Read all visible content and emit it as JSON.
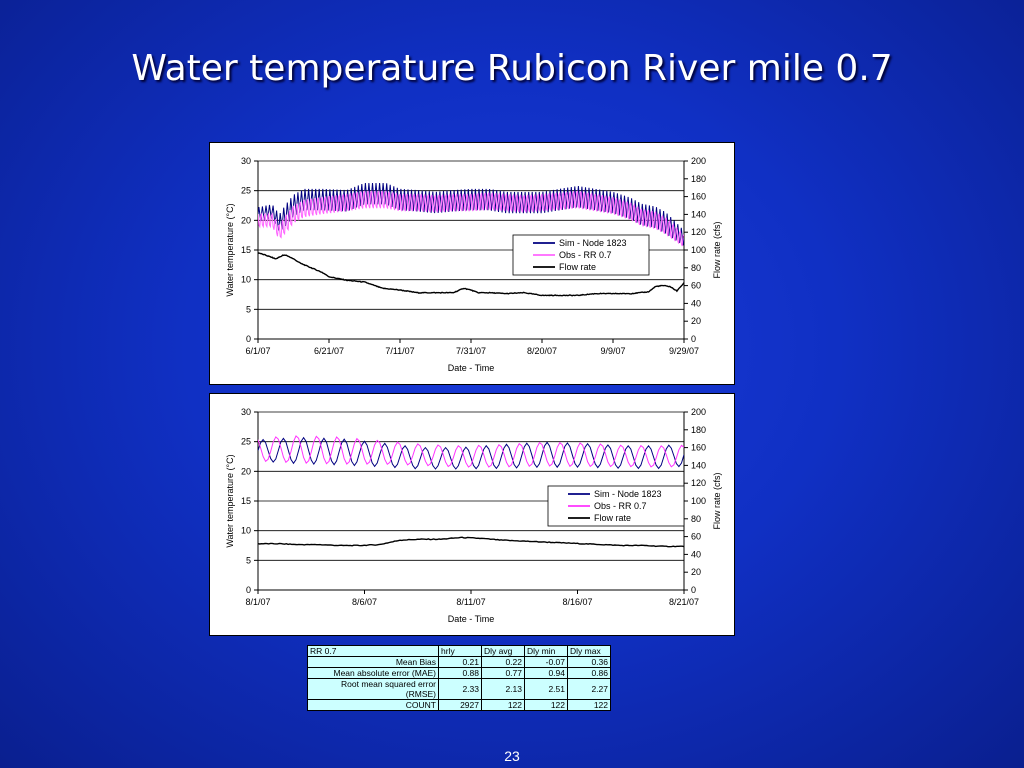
{
  "slide": {
    "title": "Water temperature Rubicon River mile 0.7",
    "page_number": "23"
  },
  "chart_data": [
    {
      "type": "line",
      "title": "",
      "xlabel": "Date - Time",
      "ylabel": "Water temperature (°C)",
      "y2label": "Flow rate (cfs)",
      "x_ticks": [
        "6/1/07",
        "6/21/07",
        "7/11/07",
        "7/31/07",
        "8/20/07",
        "9/9/07",
        "9/29/07"
      ],
      "x_range_days": [
        0,
        120
      ],
      "ylim": [
        0,
        30
      ],
      "y_ticks": [
        0,
        5,
        10,
        15,
        20,
        25,
        30
      ],
      "y2lim": [
        0,
        200
      ],
      "y2_ticks": [
        0,
        20,
        40,
        60,
        80,
        100,
        120,
        140,
        160,
        180,
        200
      ],
      "grid": "horizontal",
      "legend_position": "center-right",
      "series": [
        {
          "name": "Sim - Node 1823",
          "axis": "left",
          "color": "#000080",
          "style": "diurnal",
          "x": [
            0,
            4,
            6,
            8,
            10,
            13,
            18,
            25,
            30,
            36,
            40,
            45,
            50,
            55,
            60,
            65,
            70,
            75,
            80,
            85,
            90,
            95,
            100,
            105,
            108,
            112,
            115,
            118,
            120
          ],
          "y": [
            21,
            21.5,
            19.5,
            21,
            22.5,
            23.5,
            23.5,
            23.3,
            24.5,
            24.5,
            23.5,
            23.3,
            23,
            23.3,
            23.5,
            23.5,
            23,
            23,
            23,
            23.5,
            24,
            23.5,
            23,
            22,
            21,
            20.5,
            19.5,
            18,
            17
          ],
          "amplitude": [
            1.2,
            1.2,
            1.5,
            1.8,
            1.8,
            1.8,
            1.8,
            1.8,
            1.8,
            1.8,
            1.8,
            1.8,
            1.8,
            1.8,
            1.8,
            1.8,
            1.8,
            1.8,
            1.8,
            1.8,
            1.8,
            1.8,
            1.8,
            1.8,
            1.8,
            1.8,
            1.8,
            1.5,
            1.3
          ]
        },
        {
          "name": "Obs - RR 0.7",
          "axis": "left",
          "color": "#ff66ff",
          "style": "diurnal",
          "x": [
            0,
            4,
            6,
            8,
            10,
            13,
            18,
            25,
            30,
            36,
            40,
            45,
            50,
            55,
            60,
            65,
            70,
            75,
            80,
            85,
            90,
            95,
            100,
            105,
            108,
            112,
            115,
            118,
            120
          ],
          "y": [
            20,
            20,
            18,
            19.5,
            21,
            22,
            22.5,
            23,
            23.5,
            23.5,
            23,
            23,
            22.8,
            23,
            23,
            23.2,
            23,
            22.8,
            23,
            23.2,
            23.5,
            23,
            22.5,
            21.5,
            20.5,
            20,
            19,
            17.5,
            16.5
          ],
          "amplitude": [
            1.3,
            1.3,
            1.5,
            1.8,
            1.8,
            1.8,
            1.8,
            1.8,
            1.8,
            1.8,
            1.8,
            1.8,
            1.8,
            1.8,
            1.8,
            1.8,
            1.8,
            1.8,
            1.8,
            1.8,
            1.8,
            1.8,
            1.8,
            1.8,
            1.8,
            1.8,
            1.8,
            1.5,
            1.3
          ]
        },
        {
          "name": "Flow  rate",
          "axis": "right",
          "color": "#000000",
          "style": "line",
          "x": [
            0,
            3,
            5,
            7,
            8,
            10,
            12,
            15,
            18,
            20,
            25,
            30,
            35,
            40,
            45,
            50,
            55,
            58,
            60,
            62,
            65,
            70,
            75,
            80,
            85,
            90,
            95,
            100,
            105,
            110,
            112,
            114,
            116,
            118,
            120
          ],
          "y": [
            97,
            93,
            90,
            94,
            94,
            90,
            85,
            80,
            75,
            70,
            66,
            64,
            57,
            55,
            52,
            52,
            52,
            57,
            55,
            52,
            52,
            51,
            52,
            49,
            49,
            49,
            51,
            51,
            51,
            53,
            59,
            60,
            59,
            54,
            63
          ]
        }
      ]
    },
    {
      "type": "line",
      "title": "",
      "xlabel": "Date - Time",
      "ylabel": "Water temperature (°C)",
      "y2label": "Flow rate (cfs)",
      "x_ticks": [
        "8/1/07",
        "8/6/07",
        "8/11/07",
        "8/16/07",
        "8/21/07"
      ],
      "x_range_days": [
        0,
        21
      ],
      "ylim": [
        0,
        30
      ],
      "y_ticks": [
        0,
        5,
        10,
        15,
        20,
        25,
        30
      ],
      "y2lim": [
        0,
        200
      ],
      "y2_ticks": [
        0,
        20,
        40,
        60,
        80,
        100,
        120,
        140,
        160,
        180,
        200
      ],
      "grid": "horizontal",
      "legend_position": "center-right",
      "series": [
        {
          "name": "Sim - Node 1823",
          "axis": "left",
          "color": "#000080",
          "style": "diurnal",
          "x": [
            0,
            2,
            4,
            6,
            8,
            10,
            12,
            14,
            16,
            18,
            20,
            21
          ],
          "y": [
            23.5,
            23.5,
            23.3,
            22.8,
            22.2,
            22.2,
            22.5,
            22.8,
            22.7,
            22.4,
            22.4,
            22.8
          ],
          "amplitude": [
            1.8,
            2.2,
            2.2,
            2.0,
            1.8,
            1.8,
            2.0,
            2.1,
            2.0,
            1.9,
            1.9,
            1.9
          ]
        },
        {
          "name": "Obs - RR 0.7",
          "axis": "left",
          "color": "#ff33ff",
          "style": "diurnal",
          "x": [
            0,
            2,
            4,
            6,
            8,
            10,
            12,
            14,
            16,
            18,
            20,
            21
          ],
          "y": [
            23.7,
            23.7,
            23.5,
            23.2,
            22.8,
            22.5,
            22.6,
            22.9,
            22.8,
            22.6,
            22.5,
            22.6
          ],
          "amplitude": [
            2.0,
            2.3,
            2.3,
            2.0,
            1.8,
            1.8,
            1.9,
            2.0,
            2.0,
            1.8,
            1.8,
            1.8
          ]
        },
        {
          "name": "Flow  rate",
          "axis": "right",
          "color": "#000000",
          "style": "line",
          "x": [
            0,
            1,
            2,
            3,
            4,
            5,
            6,
            7,
            8,
            9,
            10,
            11,
            12,
            13,
            14,
            15,
            16,
            17,
            18,
            19,
            20,
            21
          ],
          "y": [
            52,
            52,
            51,
            51,
            50,
            50,
            51,
            56,
            57,
            57,
            59,
            58,
            56,
            55,
            54,
            53,
            52,
            51,
            50,
            50,
            49,
            49
          ]
        }
      ]
    }
  ],
  "stats_table": {
    "headers": [
      "RR 0.7",
      "hrly",
      "Dly avg",
      "Dly min",
      "Dly max"
    ],
    "rows": [
      [
        "Mean Bias",
        "0.21",
        "0.22",
        "-0.07",
        "0.36"
      ],
      [
        "Mean absolute error (MAE)",
        "0.88",
        "0.77",
        "0.94",
        "0.86"
      ],
      [
        "Root mean squared error (RMSE)",
        "2.33",
        "2.13",
        "2.51",
        "2.27"
      ],
      [
        "COUNT",
        "2927",
        "122",
        "122",
        "122"
      ]
    ]
  }
}
